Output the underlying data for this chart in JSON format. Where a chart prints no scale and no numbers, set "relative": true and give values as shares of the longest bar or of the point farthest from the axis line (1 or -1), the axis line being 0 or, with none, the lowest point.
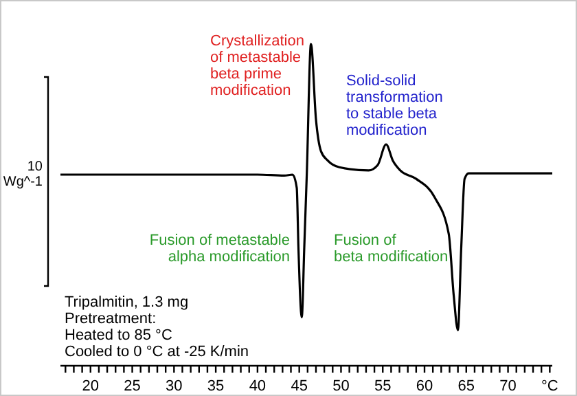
{
  "chart_data": {
    "type": "line",
    "relative": true,
    "ylabel": "10 Wg^-1",
    "x": [
      16.4,
      40,
      43.2,
      44.2,
      44.7,
      44.9,
      45.3,
      45.6,
      45.9,
      46.4,
      47.0,
      47.6,
      48.4,
      49.8,
      53.3,
      54.4,
      55.4,
      56.2,
      57.1,
      59.0,
      61.2,
      62.9,
      63.5,
      64.0,
      64.4,
      64.8,
      65.3,
      75.3
    ],
    "series": [
      {
        "color": "#000000",
        "values": [
          0.594,
          0.594,
          0.591,
          0.594,
          0.553,
          0.368,
          0.151,
          0.368,
          0.594,
          1,
          0.766,
          0.667,
          0.638,
          0.617,
          0.607,
          0.624,
          0.688,
          0.638,
          0.607,
          0.581,
          0.524,
          0.41,
          0.218,
          0.111,
          0.368,
          0.581,
          0.598,
          0.598
        ]
      }
    ],
    "xlim": [
      16.4,
      75.3
    ],
    "xticks": [
      {
        "value": 17,
        "label": null
      },
      {
        "value": 18,
        "label": null
      },
      {
        "value": 19,
        "label": null
      },
      20,
      {
        "value": 21,
        "label": null
      },
      {
        "value": 22,
        "label": null
      },
      {
        "value": 23,
        "label": null
      },
      {
        "value": 24,
        "label": null
      },
      25,
      {
        "value": 26,
        "label": null
      },
      {
        "value": 27,
        "label": null
      },
      {
        "value": 28,
        "label": null
      },
      {
        "value": 29,
        "label": null
      },
      30,
      {
        "value": 31,
        "label": null
      },
      {
        "value": 32,
        "label": null
      },
      {
        "value": 33,
        "label": null
      },
      {
        "value": 34,
        "label": null
      },
      35,
      {
        "value": 36,
        "label": null
      },
      {
        "value": 37,
        "label": null
      },
      {
        "value": 38,
        "label": null
      },
      {
        "value": 39,
        "label": null
      },
      40,
      {
        "value": 41,
        "label": null
      },
      {
        "value": 42,
        "label": null
      },
      {
        "value": 43,
        "label": null
      },
      {
        "value": 44,
        "label": null
      },
      45,
      {
        "value": 46,
        "label": null
      },
      {
        "value": 47,
        "label": null
      },
      {
        "value": 48,
        "label": null
      },
      {
        "value": 49,
        "label": null
      },
      50,
      {
        "value": 51,
        "label": null
      },
      {
        "value": 52,
        "label": null
      },
      {
        "value": 53,
        "label": null
      },
      {
        "value": 54,
        "label": null
      },
      55,
      {
        "value": 56,
        "label": null
      },
      {
        "value": 57,
        "label": null
      },
      {
        "value": 58,
        "label": null
      },
      {
        "value": 59,
        "label": null
      },
      60,
      {
        "value": 61,
        "label": null
      },
      {
        "value": 62,
        "label": null
      },
      {
        "value": 63,
        "label": null
      },
      {
        "value": 64,
        "label": null
      },
      65,
      {
        "value": 66,
        "label": null
      },
      {
        "value": 67,
        "label": null
      },
      {
        "value": 68,
        "label": null
      },
      {
        "value": 69,
        "label": null
      },
      70,
      {
        "value": 71,
        "label": null
      },
      {
        "value": 72,
        "label": null
      },
      {
        "value": 73,
        "label": null
      },
      {
        "value": 74,
        "label": null
      },
      {
        "value": 75,
        "label": "°C"
      }
    ],
    "annotations": [
      "Crystallization\nof metastable\nbeta prime\nmodification",
      "Solid-solid\ntransformation\nto stable beta\nmodification",
      "Fusion of metastable\nalpha modification",
      "Fusion of\nbeta modification",
      "Tripalmitin, 1.3 mg\nPretreatment:\nHeated to 85 °C\nCooled to 0 °C at -25 K/min"
    ]
  }
}
